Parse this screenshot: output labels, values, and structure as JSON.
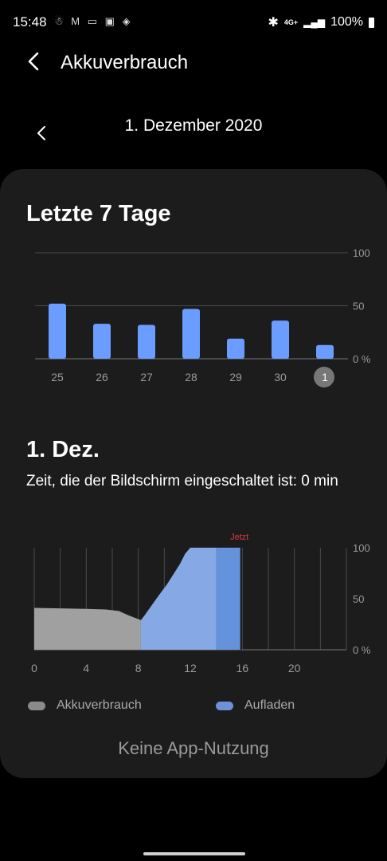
{
  "status_bar": {
    "time": "15:48",
    "left_icons": [
      "notification-icon",
      "gmail-icon",
      "news-icon",
      "gallery-icon",
      "security-icon"
    ],
    "right_icons": [
      "bluetooth-icon",
      "network-4g-icon",
      "signal-icon"
    ],
    "battery": "100%",
    "network_label": "4G+"
  },
  "header": {
    "title": "Akkuverbrauch"
  },
  "date_nav": {
    "label": "1. Dezember 2020"
  },
  "weekly": {
    "title": "Letzte 7 Tage",
    "chart_data": {
      "type": "bar",
      "categories": [
        "25",
        "26",
        "27",
        "28",
        "29",
        "30",
        "1"
      ],
      "values": [
        52,
        33,
        32,
        47,
        19,
        36,
        13
      ],
      "selected_category": "1",
      "ylim": [
        0,
        100
      ],
      "y_ticks": [
        "0 %",
        "50",
        "100"
      ],
      "bar_color": "#6b9cff"
    }
  },
  "daily": {
    "title": "1. Dez.",
    "screen_time": "Zeit, die der Bildschirm eingeschaltet ist: 0 min",
    "now_label": "Jetzt",
    "chart_data": {
      "type": "area",
      "x_ticks": [
        "0",
        "4",
        "8",
        "12",
        "16",
        "20"
      ],
      "y_ticks": [
        "0 %",
        "50",
        "100"
      ],
      "xlim": [
        0,
        24
      ],
      "ylim": [
        0,
        100
      ],
      "now_hour": 15.9,
      "series": [
        {
          "name": "Akkuverbrauch",
          "color": "#a0a0a0",
          "points": [
            [
              0,
              41
            ],
            [
              2,
              40.5
            ],
            [
              4,
              40
            ],
            [
              5.5,
              39.5
            ],
            [
              6.5,
              38
            ],
            [
              7.2,
              34
            ],
            [
              8.2,
              29
            ]
          ]
        },
        {
          "name": "Aufladen",
          "color": "#86a8e4",
          "points": [
            [
              8.2,
              29
            ],
            [
              8.5,
              34
            ],
            [
              9,
              43
            ],
            [
              9.5,
              52
            ],
            [
              10.2,
              64
            ],
            [
              10.8,
              76
            ],
            [
              11.2,
              84
            ],
            [
              11.6,
              94
            ],
            [
              12,
              100
            ],
            [
              14,
              100
            ]
          ]
        },
        {
          "name": "Aufladen",
          "color": "#6592dc",
          "points": [
            [
              14,
              100
            ],
            [
              15.9,
              100
            ]
          ]
        }
      ]
    },
    "legend": [
      {
        "label": "Akkuverbrauch",
        "color": "#8a8a8a"
      },
      {
        "label": "Aufladen",
        "color": "#6b91d6"
      }
    ]
  },
  "footer": {
    "no_app_usage": "Keine App-Nutzung"
  }
}
